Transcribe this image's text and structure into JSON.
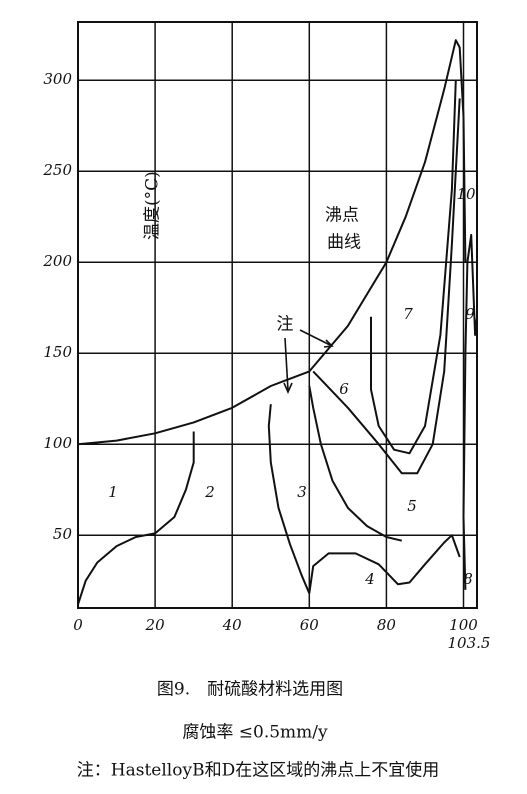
{
  "chart_data": {
    "type": "line",
    "y_label": "温度(°C)",
    "caption": "图9.　耐硫酸材料选用图",
    "subcaption": "腐蚀率 ≤0.5mm/y",
    "note": "注：HastelloyB和D在这区域的沸点上不宜使用",
    "annotations": [
      "1",
      "2",
      "3",
      "4",
      "5",
      "6",
      "7",
      "8",
      "9",
      "10",
      "沸点",
      "曲线",
      "注"
    ],
    "color": "#111111",
    "grid": true,
    "xlim": [
      0,
      103.5
    ],
    "ylim": [
      10,
      332
    ],
    "xticks": [
      0,
      20,
      40,
      60,
      80,
      100,
      103.5
    ],
    "yticks": [
      50,
      100,
      150,
      200,
      250,
      300
    ],
    "series": [
      {
        "x": [
          0,
          10,
          20,
          30,
          40,
          50,
          60,
          70,
          80,
          85,
          90,
          95,
          98,
          99,
          100,
          100.5
        ],
        "values": [
          100,
          102,
          106,
          112,
          120,
          132,
          140,
          165,
          200,
          225,
          255,
          295,
          322,
          318,
          280,
          200
        ]
      },
      {
        "x": [
          0,
          2,
          5,
          10,
          15,
          20,
          25,
          28,
          30,
          30
        ],
        "values": [
          12,
          25,
          35,
          44,
          49,
          51,
          60,
          75,
          90,
          107
        ]
      },
      {
        "x": [
          50,
          49.5,
          50,
          52,
          55,
          58,
          60
        ],
        "values": [
          122,
          110,
          90,
          65,
          45,
          28,
          18
        ]
      },
      {
        "x": [
          60,
          61,
          65,
          72,
          78,
          83,
          86,
          90,
          95,
          97,
          99
        ],
        "values": [
          18,
          33,
          40,
          40,
          34,
          23,
          24,
          34,
          46,
          50,
          38
        ]
      },
      {
        "x": [
          60,
          61,
          63,
          66,
          70,
          75,
          80,
          84
        ],
        "values": [
          132,
          120,
          100,
          80,
          65,
          55,
          49,
          47
        ]
      },
      {
        "x": [
          61,
          70,
          78,
          84,
          88,
          92,
          95,
          97,
          99
        ],
        "values": [
          140,
          120,
          100,
          84,
          84,
          100,
          140,
          210,
          290
        ]
      },
      {
        "x": [
          76,
          76,
          78,
          82,
          86,
          90,
          94,
          97,
          98
        ],
        "values": [
          170,
          130,
          110,
          97,
          95,
          110,
          160,
          240,
          300
        ]
      },
      {
        "x": [
          100.5,
          100,
          100.5,
          101,
          102,
          103,
          103.5
        ],
        "values": [
          20,
          60,
          150,
          200,
          215,
          160,
          170
        ]
      }
    ]
  }
}
